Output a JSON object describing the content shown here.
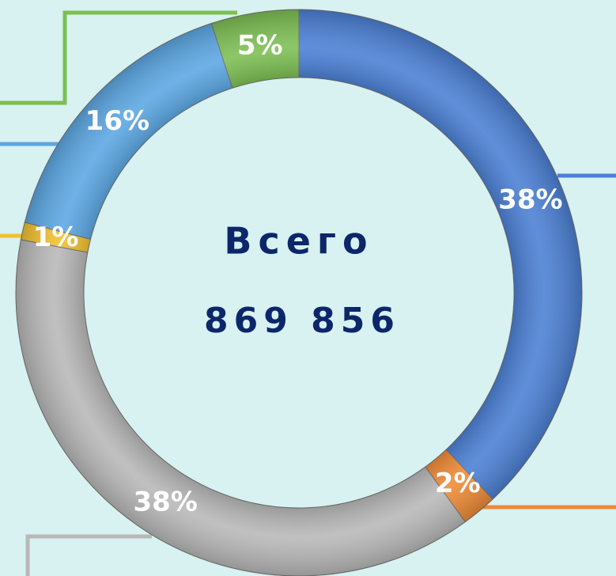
{
  "chart_data": {
    "type": "pie",
    "values": [
      38,
      2,
      38,
      1,
      16,
      5
    ],
    "value_labels": [
      "38%",
      "2%",
      "38%",
      "1%",
      "16%",
      "5%"
    ],
    "colors": [
      "#4a7fd4",
      "#ef8a35",
      "#b8b8b8",
      "#f2c12e",
      "#5ba7e3",
      "#7cbf52"
    ],
    "center_title": "Всего",
    "center_value": "869 856"
  }
}
